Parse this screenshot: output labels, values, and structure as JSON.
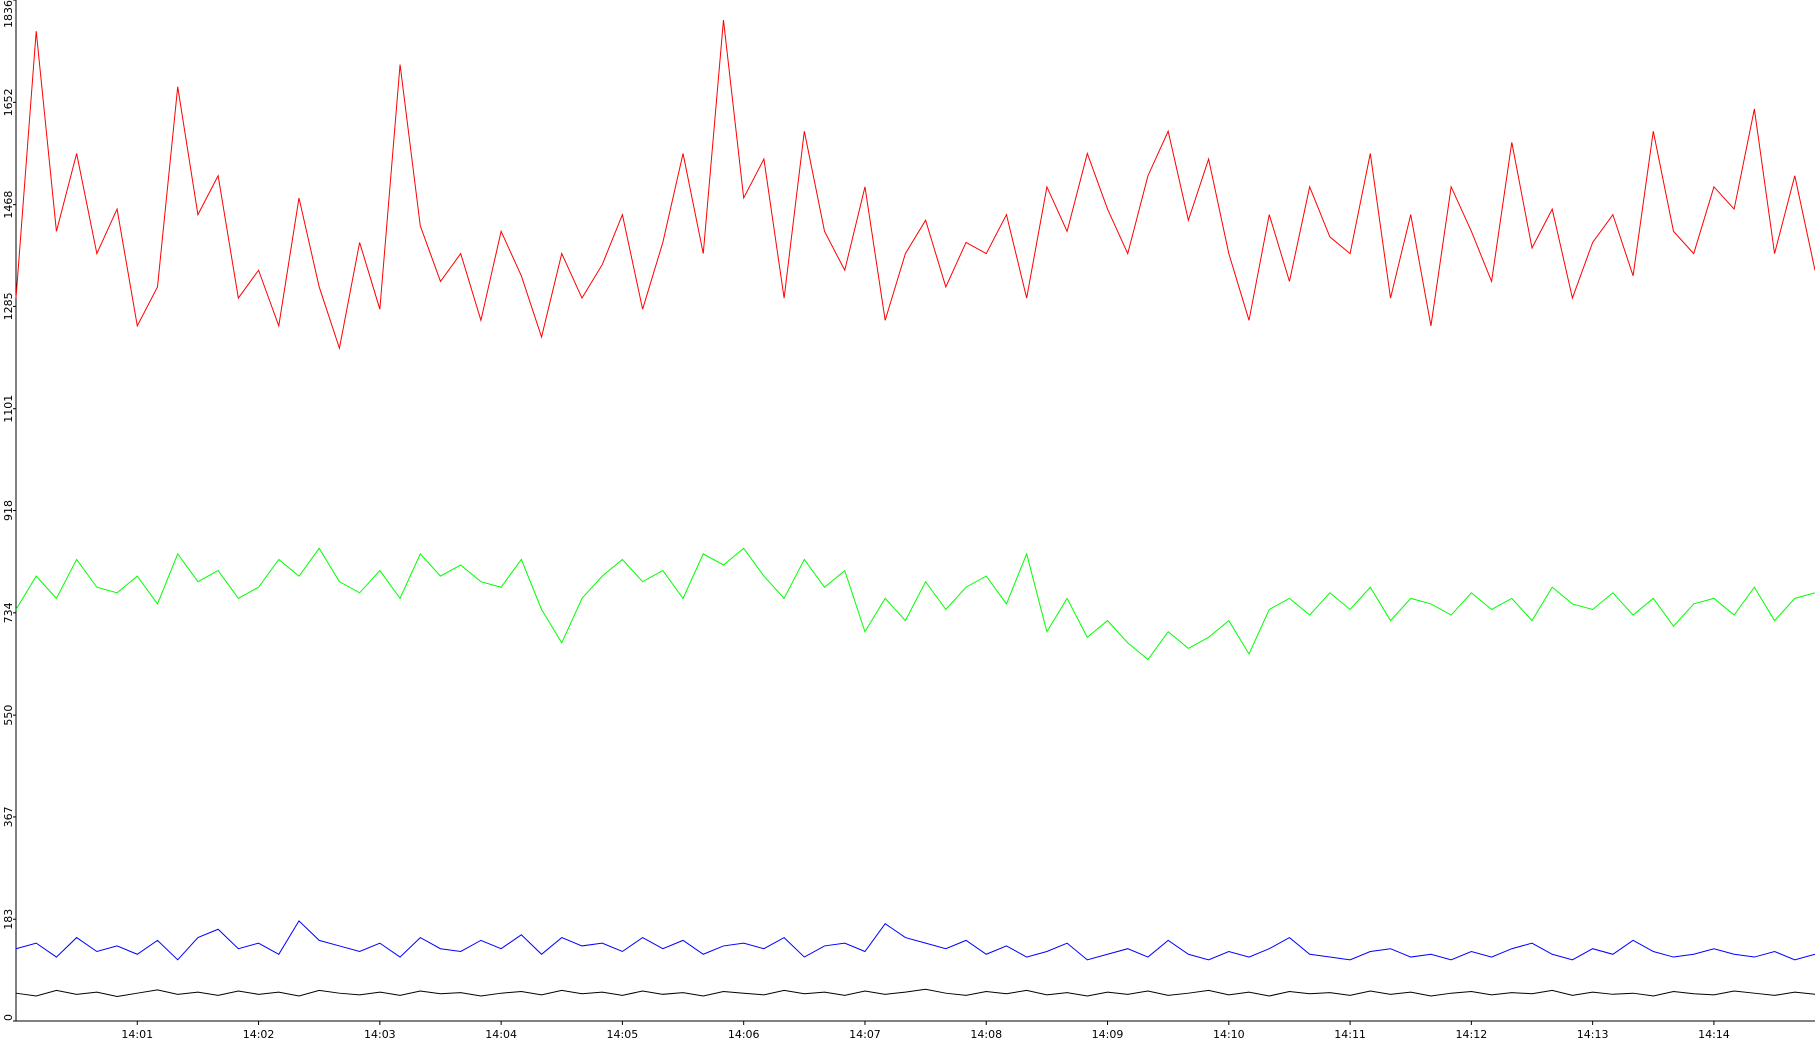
{
  "chart_data": {
    "type": "line",
    "categories": [
      null,
      null,
      null,
      null,
      null,
      null,
      "14:01",
      null,
      null,
      null,
      null,
      null,
      "14:02",
      null,
      null,
      null,
      null,
      null,
      "14:03",
      null,
      null,
      null,
      null,
      null,
      "14:04",
      null,
      null,
      null,
      null,
      null,
      "14:05",
      null,
      null,
      null,
      null,
      null,
      "14:06",
      null,
      null,
      null,
      null,
      null,
      "14:07",
      null,
      null,
      null,
      null,
      null,
      "14:08",
      null,
      null,
      null,
      null,
      null,
      "14:09",
      null,
      null,
      null,
      null,
      null,
      "14:10",
      null,
      null,
      null,
      null,
      null,
      "14:11",
      null,
      null,
      null,
      null,
      null,
      "14:12",
      null,
      null,
      null,
      null,
      null,
      "14:13",
      null,
      null,
      null,
      null,
      null,
      "14:14",
      null,
      null,
      null,
      null,
      null
    ],
    "ylim": [
      0,
      1836
    ],
    "yticks": [
      0,
      183,
      367,
      550,
      734,
      918,
      1101,
      1285,
      1468,
      1652,
      1836
    ],
    "grid": false,
    "series": [
      {
        "color": "#ff0000",
        "values": [
          1300,
          1780,
          1420,
          1560,
          1380,
          1460,
          1250,
          1320,
          1680,
          1450,
          1520,
          1300,
          1350,
          1250,
          1480,
          1320,
          1210,
          1400,
          1280,
          1720,
          1430,
          1330,
          1380,
          1260,
          1420,
          1340,
          1230,
          1380,
          1300,
          1360,
          1450,
          1280,
          1400,
          1560,
          1380,
          1800,
          1480,
          1550,
          1300,
          1600,
          1420,
          1350,
          1500,
          1260,
          1380,
          1440,
          1320,
          1400,
          1380,
          1450,
          1300,
          1500,
          1420,
          1560,
          1460,
          1380,
          1520,
          1600,
          1440,
          1550,
          1380,
          1260,
          1450,
          1330,
          1500,
          1410,
          1380,
          1560,
          1300,
          1450,
          1250,
          1500,
          1420,
          1330,
          1580,
          1390,
          1460,
          1300,
          1400,
          1450,
          1340,
          1600,
          1420,
          1380,
          1500,
          1460,
          1640,
          1380,
          1520,
          1350
        ]
      },
      {
        "color": "#00ff00",
        "values": [
          740,
          800,
          760,
          830,
          780,
          770,
          800,
          750,
          840,
          790,
          810,
          760,
          780,
          830,
          800,
          850,
          790,
          770,
          810,
          760,
          840,
          800,
          820,
          790,
          780,
          830,
          740,
          680,
          760,
          800,
          830,
          790,
          810,
          760,
          840,
          820,
          850,
          800,
          760,
          830,
          780,
          810,
          700,
          760,
          720,
          790,
          740,
          780,
          800,
          750,
          840,
          700,
          760,
          690,
          720,
          680,
          650,
          700,
          670,
          690,
          720,
          660,
          740,
          760,
          730,
          770,
          740,
          780,
          720,
          760,
          750,
          730,
          770,
          740,
          760,
          720,
          780,
          750,
          740,
          770,
          730,
          760,
          710,
          750,
          760,
          730,
          780,
          720,
          760,
          770
        ]
      },
      {
        "color": "#0000ff",
        "values": [
          130,
          140,
          115,
          150,
          125,
          135,
          120,
          145,
          110,
          150,
          165,
          130,
          140,
          120,
          180,
          145,
          135,
          125,
          140,
          115,
          150,
          130,
          125,
          145,
          130,
          155,
          120,
          150,
          135,
          140,
          125,
          150,
          130,
          145,
          120,
          135,
          140,
          130,
          150,
          115,
          135,
          140,
          125,
          175,
          150,
          140,
          130,
          145,
          120,
          135,
          115,
          125,
          140,
          110,
          120,
          130,
          115,
          145,
          120,
          110,
          125,
          115,
          130,
          150,
          120,
          115,
          110,
          125,
          130,
          115,
          120,
          110,
          125,
          115,
          130,
          140,
          120,
          110,
          130,
          120,
          145,
          125,
          115,
          120,
          130,
          120,
          115,
          125,
          110,
          120
        ]
      },
      {
        "color": "#000000",
        "values": [
          50,
          45,
          55,
          48,
          52,
          44,
          50,
          56,
          48,
          52,
          46,
          54,
          48,
          52,
          45,
          55,
          50,
          47,
          52,
          46,
          54,
          49,
          51,
          45,
          50,
          53,
          47,
          55,
          49,
          52,
          46,
          54,
          48,
          51,
          45,
          53,
          50,
          47,
          55,
          49,
          52,
          46,
          54,
          48,
          52,
          57,
          50,
          46,
          53,
          49,
          55,
          47,
          51,
          45,
          52,
          48,
          54,
          46,
          50,
          55,
          47,
          52,
          45,
          53,
          49,
          51,
          46,
          54,
          48,
          52,
          45,
          50,
          53,
          47,
          51,
          49,
          55,
          46,
          52,
          48,
          50,
          45,
          53,
          49,
          47,
          54,
          50,
          46,
          52,
          48
        ]
      }
    ]
  }
}
